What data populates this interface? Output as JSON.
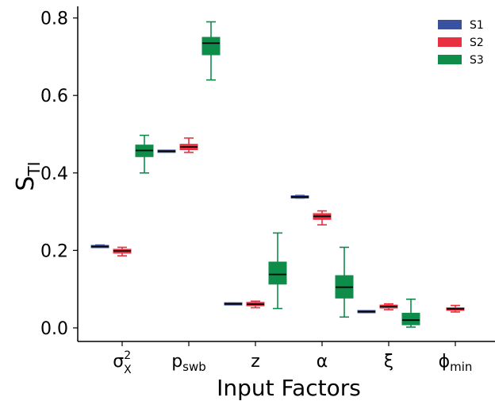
{
  "chart_data": {
    "type": "box",
    "xlabel": "Input Factors",
    "ylabel": {
      "base": "S",
      "sub": "TI"
    },
    "ylim": [
      -0.035,
      0.83
    ],
    "yticks": [
      0.0,
      0.2,
      0.4,
      0.6,
      0.8
    ],
    "ytick_labels": [
      "0.0",
      "0.2",
      "0.4",
      "0.6",
      "0.8"
    ],
    "categories": [
      {
        "base": "σ",
        "sup": "2",
        "sub": "X"
      },
      {
        "base": "p",
        "sub": "swb"
      },
      {
        "base": "z"
      },
      {
        "base": "α"
      },
      {
        "base": "ξ"
      },
      {
        "base": "ϕ",
        "sub": "min"
      }
    ],
    "legend_position": "top-right",
    "series": [
      {
        "name": "S1",
        "color": "#3a50a0",
        "boxes": [
          {
            "min": 0.208,
            "q1": 0.209,
            "median": 0.21,
            "q3": 0.212,
            "max": 0.214
          },
          {
            "min": 0.454,
            "q1": 0.455,
            "median": 0.456,
            "q3": 0.457,
            "max": 0.458
          },
          {
            "min": 0.06,
            "q1": 0.061,
            "median": 0.062,
            "q3": 0.063,
            "max": 0.064
          },
          {
            "min": 0.335,
            "q1": 0.337,
            "median": 0.338,
            "q3": 0.34,
            "max": 0.342
          },
          {
            "min": 0.04,
            "q1": 0.041,
            "median": 0.042,
            "q3": 0.043,
            "max": 0.044
          },
          null
        ]
      },
      {
        "name": "S2",
        "color": "#e83040",
        "boxes": [
          {
            "min": 0.186,
            "q1": 0.193,
            "median": 0.199,
            "q3": 0.203,
            "max": 0.208
          },
          {
            "min": 0.453,
            "q1": 0.46,
            "median": 0.467,
            "q3": 0.474,
            "max": 0.49
          },
          {
            "min": 0.052,
            "q1": 0.057,
            "median": 0.061,
            "q3": 0.066,
            "max": 0.069
          },
          {
            "min": 0.266,
            "q1": 0.28,
            "median": 0.288,
            "q3": 0.295,
            "max": 0.302
          },
          {
            "min": 0.047,
            "q1": 0.051,
            "median": 0.055,
            "q3": 0.059,
            "max": 0.062
          },
          {
            "min": 0.041,
            "q1": 0.045,
            "median": 0.049,
            "q3": 0.052,
            "max": 0.058
          }
        ]
      },
      {
        "name": "S3",
        "color": "#0e8c4a",
        "boxes": [
          {
            "min": 0.4,
            "q1": 0.442,
            "median": 0.458,
            "q3": 0.472,
            "max": 0.497
          },
          {
            "min": 0.64,
            "q1": 0.705,
            "median": 0.735,
            "q3": 0.75,
            "max": 0.79
          },
          {
            "min": 0.05,
            "q1": 0.113,
            "median": 0.138,
            "q3": 0.17,
            "max": 0.245
          },
          {
            "min": 0.028,
            "q1": 0.077,
            "median": 0.105,
            "q3": 0.135,
            "max": 0.208
          },
          {
            "min": 0.002,
            "q1": 0.008,
            "median": 0.02,
            "q3": 0.038,
            "max": 0.074
          },
          null
        ]
      }
    ]
  }
}
